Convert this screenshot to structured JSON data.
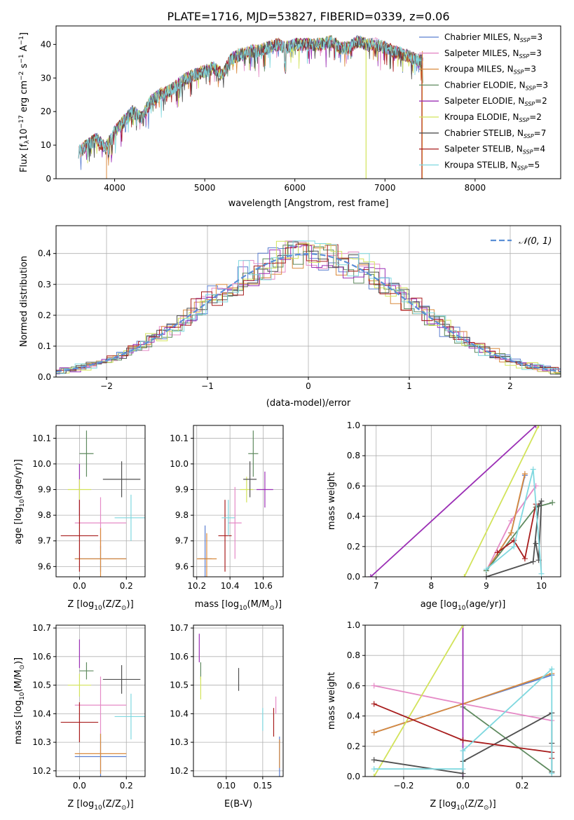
{
  "title": "PLATE=1716, MJD=53827, FIBERID=0339, z=0.06",
  "colors": {
    "Chabrier MILES": "#5b7fd0",
    "Salpeter MILES": "#e58ac6",
    "Kroupa MILES": "#d98a3d",
    "Chabrier ELODIE": "#5f8a5f",
    "Salpeter ELODIE": "#9b2fb5",
    "Kroupa ELODIE": "#d2e35a",
    "Chabrier STELIB": "#505050",
    "Salpeter STELIB": "#a81d1d",
    "Kroupa STELIB": "#7fd8df",
    "normal": "#5b8fd6"
  },
  "chart_data": [
    {
      "id": "spectrum",
      "type": "line",
      "xlabel": "wavelength [Angstrom, rest frame]",
      "ylabel": "Flux [f",
      "ylabel_parts": [
        "Flux [f",
        "λ",
        "10",
        "−17",
        " erg cm",
        "−2",
        " s",
        "−1",
        " A",
        "−1",
        "]"
      ],
      "xlim": [
        3350,
        8950
      ],
      "ylim": [
        0,
        45.5
      ],
      "xticks": [
        4000,
        5000,
        6000,
        7000,
        8000
      ],
      "yticks": [
        0,
        10,
        20,
        30,
        40
      ],
      "grid": false,
      "legend_placement": "upper-right",
      "envelope_x": [
        3600,
        3700,
        3800,
        3900,
        4000,
        4100,
        4200,
        4300,
        4400,
        4500,
        4600,
        4700,
        4800,
        4900,
        5000,
        5100,
        5200,
        5300,
        5400,
        5500,
        5600,
        5700,
        5800,
        5900,
        6000,
        6100,
        6200,
        6300,
        6400,
        6500,
        6600,
        6700,
        6800,
        6900,
        7000,
        7100,
        7200,
        7300,
        7400
      ],
      "envelope_y": [
        8,
        10,
        12,
        9,
        14,
        17,
        20,
        18,
        23,
        25,
        26,
        28,
        30,
        31,
        32,
        33,
        31,
        36,
        37,
        38,
        38,
        39,
        40,
        39,
        40,
        40,
        40,
        40,
        41,
        39,
        39,
        41,
        40,
        40,
        39,
        38,
        37,
        36,
        35
      ],
      "series": [
        {
          "name": "Chabrier MILES",
          "nssp": "3"
        },
        {
          "name": "Salpeter MILES",
          "nssp": "3"
        },
        {
          "name": "Kroupa MILES",
          "nssp": "3"
        },
        {
          "name": "Chabrier ELODIE",
          "nssp": "3"
        },
        {
          "name": "Salpeter ELODIE",
          "nssp": "2"
        },
        {
          "name": "Kroupa ELODIE",
          "nssp": "2"
        },
        {
          "name": "Chabrier STELIB",
          "nssp": "7"
        },
        {
          "name": "Salpeter STELIB",
          "nssp": "4"
        },
        {
          "name": "Kroupa STELIB",
          "nssp": "5"
        }
      ]
    },
    {
      "id": "residuals",
      "type": "line",
      "xlabel": "(data-model)/error",
      "ylabel": "Normed distribution",
      "xlim": [
        -2.5,
        2.5
      ],
      "ylim": [
        0,
        0.49
      ],
      "xticks": [
        -2,
        -1,
        0,
        1,
        2
      ],
      "yticks": [
        0.0,
        0.1,
        0.2,
        0.3,
        0.4
      ],
      "grid": true,
      "legend": "𝒩(0, 1)",
      "legend_placement": "upper-right",
      "normal": {
        "mean": 0,
        "sigma": 1
      }
    },
    {
      "id": "age-vs-Z",
      "type": "scatter",
      "xlabel": "Z [log",
      "xlabel_parts": [
        "Z [log",
        "10",
        "(Z/Z",
        "⊙",
        ")]"
      ],
      "ylabel_parts": [
        "age  [log",
        "10",
        "(age/yr)]"
      ],
      "xlim": [
        -0.1,
        0.28
      ],
      "ylim": [
        9.56,
        10.15
      ],
      "xticks": [
        0.0,
        0.2
      ],
      "yticks": [
        9.6,
        9.7,
        9.8,
        9.9,
        10.0,
        10.1
      ],
      "grid": true,
      "points": [
        {
          "s": "Chabrier MILES",
          "x": 0.09,
          "y": 9.63,
          "xe": 0.11,
          "ye": 0.05
        },
        {
          "s": "Salpeter MILES",
          "x": 0.09,
          "y": 9.77,
          "xe": 0.11,
          "ye": 0.1
        },
        {
          "s": "Kroupa MILES",
          "x": 0.09,
          "y": 9.63,
          "xe": 0.11,
          "ye": 0.12
        },
        {
          "s": "Chabrier ELODIE",
          "x": 0.03,
          "y": 10.04,
          "xe": 0.03,
          "ye": 0.09
        },
        {
          "s": "Salpeter ELODIE",
          "x": 0.0,
          "y": 9.9,
          "xe": 0.0,
          "ye": 0.1
        },
        {
          "s": "Kroupa ELODIE",
          "x": 0.0,
          "y": 9.9,
          "xe": 0.05,
          "ye": 0.04
        },
        {
          "s": "Chabrier STELIB",
          "x": 0.18,
          "y": 9.94,
          "xe": 0.08,
          "ye": 0.07
        },
        {
          "s": "Salpeter STELIB",
          "x": 0.0,
          "y": 9.72,
          "xe": 0.08,
          "ye": 0.14
        },
        {
          "s": "Kroupa STELIB",
          "x": 0.22,
          "y": 9.79,
          "xe": 0.07,
          "ye": 0.09
        }
      ]
    },
    {
      "id": "age-vs-mass",
      "type": "scatter",
      "xlabel_parts": [
        "mass [log",
        "10",
        "(M/M",
        "⊙",
        ")]"
      ],
      "xlim": [
        10.18,
        10.72
      ],
      "ylim": [
        9.56,
        10.15
      ],
      "xticks": [
        10.2,
        10.4,
        10.6
      ],
      "yticks": [
        9.6,
        9.7,
        9.8,
        9.9,
        10.0,
        10.1
      ],
      "grid": true,
      "points": [
        {
          "s": "Chabrier MILES",
          "x": 10.25,
          "y": 9.63,
          "xe": 0.04,
          "ye": 0.13
        },
        {
          "s": "Salpeter MILES",
          "x": 10.43,
          "y": 9.77,
          "xe": 0.04,
          "ye": 0.14
        },
        {
          "s": "Kroupa MILES",
          "x": 10.26,
          "y": 9.63,
          "xe": 0.06,
          "ye": 0.1
        },
        {
          "s": "Chabrier ELODIE",
          "x": 10.54,
          "y": 10.04,
          "xe": 0.03,
          "ye": 0.09
        },
        {
          "s": "Salpeter ELODIE",
          "x": 10.61,
          "y": 9.9,
          "xe": 0.05,
          "ye": 0.07
        },
        {
          "s": "Kroupa ELODIE",
          "x": 10.5,
          "y": 9.9,
          "xe": 0.04,
          "ye": 0.05
        },
        {
          "s": "Chabrier STELIB",
          "x": 10.52,
          "y": 9.94,
          "xe": 0.04,
          "ye": 0.07
        },
        {
          "s": "Salpeter STELIB",
          "x": 10.37,
          "y": 9.72,
          "xe": 0.04,
          "ye": 0.14
        },
        {
          "s": "Kroupa STELIB",
          "x": 10.39,
          "y": 9.79,
          "xe": 0.04,
          "ye": 0.07
        }
      ]
    },
    {
      "id": "weight-vs-age",
      "type": "line",
      "xlabel_parts": [
        "age  [log",
        "10",
        "(age/yr)]"
      ],
      "ylabel": "mass weight",
      "xlim": [
        6.8,
        10.35
      ],
      "ylim": [
        0,
        1.0
      ],
      "xticks": [
        7,
        8,
        9,
        10
      ],
      "yticks": [
        0.0,
        0.2,
        0.4,
        0.6,
        0.8,
        1.0
      ],
      "grid": true,
      "series": [
        {
          "s": "Chabrier MILES",
          "x": [
            9.0,
            9.45,
            9.7
          ],
          "y": [
            0.04,
            0.29,
            0.67
          ]
        },
        {
          "s": "Salpeter MILES",
          "x": [
            9.0,
            9.45,
            9.9
          ],
          "y": [
            0.04,
            0.37,
            0.6
          ]
        },
        {
          "s": "Kroupa MILES",
          "x": [
            9.0,
            9.45,
            9.7
          ],
          "y": [
            0.04,
            0.29,
            0.68
          ]
        },
        {
          "s": "Chabrier ELODIE",
          "x": [
            9.0,
            9.9,
            10.2
          ],
          "y": [
            0.04,
            0.46,
            0.49
          ]
        },
        {
          "s": "Salpeter ELODIE",
          "x": [
            6.9,
            9.9
          ],
          "y": [
            0.0,
            1.0
          ]
        },
        {
          "s": "Kroupa ELODIE",
          "x": [
            8.6,
            9.95
          ],
          "y": [
            0.0,
            1.0
          ]
        },
        {
          "s": "Chabrier STELIB",
          "x": [
            9.0,
            9.85,
            9.95,
            10.0,
            9.95,
            9.9
          ],
          "y": [
            0.0,
            0.1,
            0.47,
            0.5,
            0.11,
            0.22
          ]
        },
        {
          "s": "Salpeter STELIB",
          "x": [
            9.2,
            9.5,
            9.7,
            9.9
          ],
          "y": [
            0.16,
            0.24,
            0.12,
            0.48
          ]
        },
        {
          "s": "Kroupa STELIB",
          "x": [
            9.0,
            9.5,
            9.85,
            10.0
          ],
          "y": [
            0.05,
            0.2,
            0.71,
            0.02
          ]
        }
      ]
    },
    {
      "id": "mass-vs-Z",
      "type": "scatter",
      "xlabel_parts": [
        "Z [log",
        "10",
        "(Z/Z",
        "⊙",
        ")]"
      ],
      "ylabel_parts": [
        "mass [log",
        "10",
        "(M/M",
        "⊙",
        ")]"
      ],
      "xlim": [
        -0.1,
        0.28
      ],
      "ylim": [
        10.18,
        10.71
      ],
      "xticks": [
        0.0,
        0.2
      ],
      "yticks": [
        10.2,
        10.3,
        10.4,
        10.5,
        10.6,
        10.7
      ],
      "grid": true,
      "points": [
        {
          "s": "Chabrier MILES",
          "x": 0.09,
          "y": 10.25,
          "xe": 0.11,
          "ye": 0.08
        },
        {
          "s": "Salpeter MILES",
          "x": 0.09,
          "y": 10.43,
          "xe": 0.11,
          "ye": 0.1
        },
        {
          "s": "Kroupa MILES",
          "x": 0.09,
          "y": 10.26,
          "xe": 0.11,
          "ye": 0.07
        },
        {
          "s": "Chabrier ELODIE",
          "x": 0.03,
          "y": 10.55,
          "xe": 0.03,
          "ye": 0.03
        },
        {
          "s": "Salpeter ELODIE",
          "x": 0.0,
          "y": 10.61,
          "xe": 0.0,
          "ye": 0.05
        },
        {
          "s": "Kroupa ELODIE",
          "x": 0.0,
          "y": 10.5,
          "xe": 0.05,
          "ye": 0.04
        },
        {
          "s": "Chabrier STELIB",
          "x": 0.18,
          "y": 10.52,
          "xe": 0.08,
          "ye": 0.05
        },
        {
          "s": "Salpeter STELIB",
          "x": 0.0,
          "y": 10.37,
          "xe": 0.08,
          "ye": 0.07
        },
        {
          "s": "Kroupa STELIB",
          "x": 0.22,
          "y": 10.39,
          "xe": 0.07,
          "ye": 0.08
        }
      ]
    },
    {
      "id": "mass-vs-EBV",
      "type": "scatter",
      "xlabel": "E(B-V)",
      "xlim": [
        0.055,
        0.178
      ],
      "ylim": [
        10.18,
        10.71
      ],
      "xticks": [
        0.1,
        0.15
      ],
      "yticks": [
        10.2,
        10.3,
        10.4,
        10.5,
        10.6,
        10.7
      ],
      "grid": true,
      "points": [
        {
          "s": "Chabrier MILES",
          "x": 0.173,
          "y": 10.25,
          "xe": 0,
          "ye": 0.07
        },
        {
          "s": "Salpeter MILES",
          "x": 0.168,
          "y": 10.43,
          "xe": 0,
          "ye": 0.03
        },
        {
          "s": "Kroupa MILES",
          "x": 0.173,
          "y": 10.26,
          "xe": 0,
          "ye": 0.05
        },
        {
          "s": "Chabrier ELODIE",
          "x": 0.065,
          "y": 10.55,
          "xe": 0,
          "ye": 0.03
        },
        {
          "s": "Salpeter ELODIE",
          "x": 0.063,
          "y": 10.63,
          "xe": 0,
          "ye": 0.05
        },
        {
          "s": "Kroupa ELODIE",
          "x": 0.065,
          "y": 10.49,
          "xe": 0,
          "ye": 0.04
        },
        {
          "s": "Chabrier STELIB",
          "x": 0.117,
          "y": 10.52,
          "xe": 0,
          "ye": 0.04
        },
        {
          "s": "Salpeter STELIB",
          "x": 0.165,
          "y": 10.37,
          "xe": 0,
          "ye": 0.05
        },
        {
          "s": "Kroupa STELIB",
          "x": 0.15,
          "y": 10.38,
          "xe": 0,
          "ye": 0.04
        }
      ]
    },
    {
      "id": "weight-vs-Z",
      "type": "line",
      "xlabel_parts": [
        "Z [log",
        "10",
        "(Z/Z",
        "⊙",
        ")]"
      ],
      "ylabel": "mass weight",
      "xlim": [
        -0.33,
        0.33
      ],
      "ylim": [
        0,
        1.0
      ],
      "xticks": [
        -0.2,
        0.0,
        0.2
      ],
      "yticks": [
        0.0,
        0.2,
        0.4,
        0.6,
        0.8,
        1.0
      ],
      "grid": true,
      "series": [
        {
          "s": "Chabrier MILES",
          "x": [
            -0.3,
            0.0,
            0.3
          ],
          "y": [
            0.29,
            0.48,
            0.67
          ]
        },
        {
          "s": "Salpeter MILES",
          "x": [
            -0.3,
            0.0,
            0.3
          ],
          "y": [
            0.6,
            0.48,
            0.37
          ]
        },
        {
          "s": "Kroupa MILES",
          "x": [
            -0.3,
            0.0,
            0.3
          ],
          "y": [
            0.29,
            0.48,
            0.68
          ]
        },
        {
          "s": "Chabrier ELODIE",
          "x": [
            0.0,
            0.3
          ],
          "y": [
            0.46,
            0.03
          ]
        },
        {
          "s": "Salpeter ELODIE",
          "x": [
            0.0,
            0.0
          ],
          "y": [
            0.0,
            1.0
          ]
        },
        {
          "s": "Kroupa ELODIE",
          "x": [
            -0.3,
            0.0
          ],
          "y": [
            0.0,
            1.0
          ]
        },
        {
          "s": "Chabrier STELIB",
          "x": [
            -0.3,
            0.0,
            0.0,
            0.3,
            0.3,
            0.3
          ],
          "y": [
            0.11,
            0.02,
            0.1,
            0.42,
            0.22,
            0.03
          ]
        },
        {
          "s": "Salpeter STELIB",
          "x": [
            -0.3,
            0.0,
            0.3,
            0.3
          ],
          "y": [
            0.48,
            0.24,
            0.16,
            0.12
          ]
        },
        {
          "s": "Kroupa STELIB",
          "x": [
            -0.3,
            0.0,
            0.0,
            0.3,
            0.3
          ],
          "y": [
            0.05,
            0.05,
            0.17,
            0.71,
            0.02
          ]
        }
      ]
    }
  ]
}
